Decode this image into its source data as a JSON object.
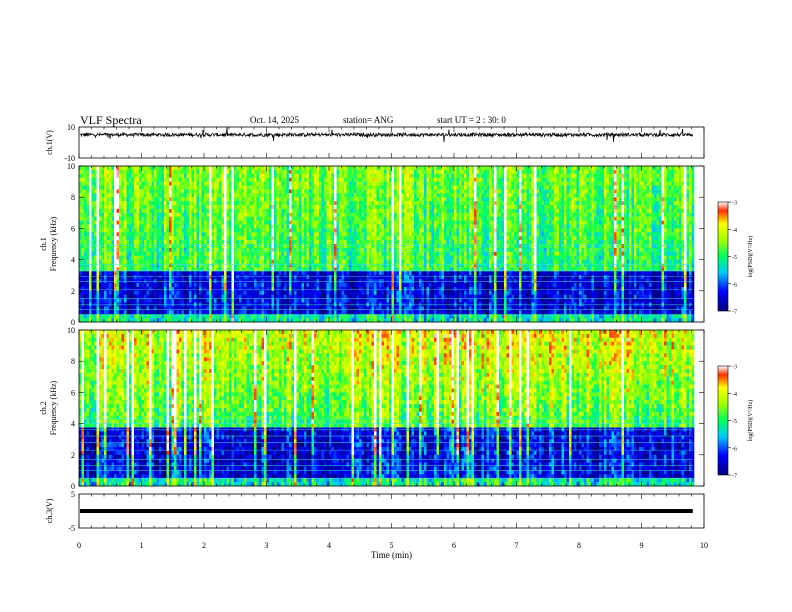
{
  "header": {
    "title": "VLF Spectra",
    "date": "Oct. 14, 2025",
    "station": "station= ANG",
    "start_ut": "start  UT =   2 : 30: 0"
  },
  "chart_data": [
    {
      "type": "line",
      "panel": "ch1-waveform",
      "ylabel": "ch.1(V)",
      "ylim": [
        -10,
        10
      ],
      "yticks": [
        "10",
        "-10"
      ],
      "xlim": [
        0,
        10
      ],
      "baseline": 5,
      "color": "#000000"
    },
    {
      "type": "heatmap",
      "panel": "ch1-spectrogram",
      "ylabel_channel": "ch.1",
      "ylabel": "Frequency  (kHz)",
      "ylim": [
        0,
        10
      ],
      "yticks": [
        "0",
        "2",
        "4",
        "6",
        "8",
        "10"
      ],
      "xlim": [
        0,
        10
      ],
      "data_end_min": 9.82,
      "colorbar": {
        "label": "log(PSD)(V²/Hz)",
        "range": [
          -7,
          -3
        ],
        "ticks": [
          "-7",
          "-6",
          "-5",
          "-4",
          "-3"
        ]
      }
    },
    {
      "type": "heatmap",
      "panel": "ch2-spectrogram",
      "ylabel_channel": "ch.2",
      "ylabel": "Frequency  (kHz)",
      "ylim": [
        0,
        10
      ],
      "yticks": [
        "0",
        "2",
        "4",
        "6",
        "8",
        "10"
      ],
      "xlim": [
        0,
        10
      ],
      "data_end_min": 9.82,
      "colorbar": {
        "label": "log(PSD)(V²/Hz)",
        "range": [
          -7,
          -3
        ],
        "ticks": [
          "-7",
          "-6",
          "-5",
          "-4",
          "-3"
        ]
      }
    },
    {
      "type": "line",
      "panel": "ch3-waveform",
      "ylabel": "ch.3(V)",
      "ylim": [
        -5,
        5
      ],
      "yticks": [
        "5",
        "-5"
      ],
      "xlim": [
        0,
        10
      ],
      "xlabel": "Time  (min)",
      "xticks": [
        "0",
        "1",
        "2",
        "3",
        "4",
        "5",
        "6",
        "7",
        "8",
        "9",
        "10"
      ],
      "baseline": 0,
      "color": "#000000"
    }
  ]
}
